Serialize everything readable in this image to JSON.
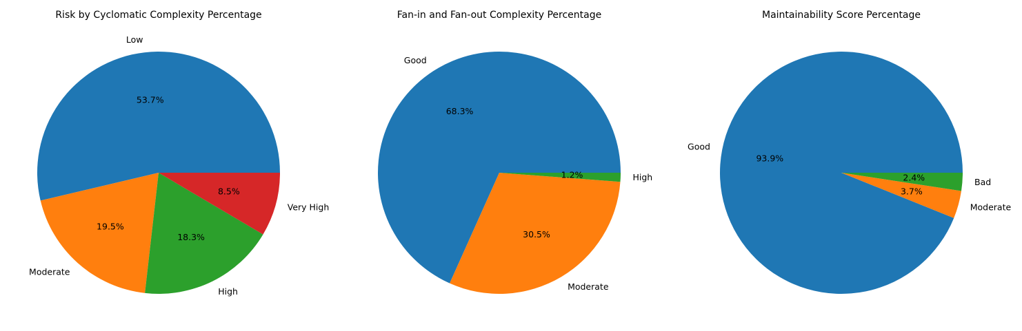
{
  "chart_data": [
    {
      "type": "pie",
      "title": "Risk by Cyclomatic Complexity Percentage",
      "labels": [
        "Low",
        "Moderate",
        "High",
        "Very High"
      ],
      "values": [
        53.7,
        19.5,
        18.3,
        8.5
      ],
      "value_labels": [
        "53.7%",
        "19.5%",
        "18.3%",
        "8.5%"
      ],
      "colors": [
        "#1f77b4",
        "#ff7f0e",
        "#2ca02c",
        "#d62728"
      ],
      "start_angle": 0,
      "direction": "counterclockwise"
    },
    {
      "type": "pie",
      "title": "Fan-in and Fan-out Complexity Percentage",
      "labels": [
        "Good",
        "Moderate",
        "High"
      ],
      "values": [
        68.3,
        30.5,
        1.2
      ],
      "value_labels": [
        "68.3%",
        "30.5%",
        "1.2%"
      ],
      "colors": [
        "#1f77b4",
        "#ff7f0e",
        "#2ca02c"
      ],
      "start_angle": 0,
      "direction": "counterclockwise"
    },
    {
      "type": "pie",
      "title": "Maintainability Score Percentage",
      "labels": [
        "Good",
        "Moderate",
        "Bad"
      ],
      "values": [
        93.9,
        3.7,
        2.4
      ],
      "value_labels": [
        "93.9%",
        "3.7%",
        "2.4%"
      ],
      "colors": [
        "#1f77b4",
        "#ff7f0e",
        "#2ca02c"
      ],
      "start_angle": 0,
      "direction": "counterclockwise"
    }
  ]
}
